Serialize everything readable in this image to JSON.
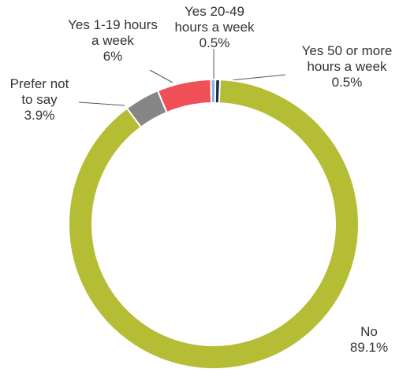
{
  "chart_data": {
    "type": "donut",
    "categories": [
      "No",
      "Prefer not to say",
      "Yes 1-19 hours a week",
      "Yes 20-49 hours a week",
      "Yes 50 or more hours a week"
    ],
    "values": [
      89.1,
      3.9,
      6,
      0.5,
      0.5
    ],
    "value_labels": [
      "89.1%",
      "3.9%",
      "6%",
      "0.5%",
      "0.5%"
    ],
    "colors": [
      "#b5bd35",
      "#868686",
      "#ef5058",
      "#8ab6de",
      "#1d2c4c"
    ]
  }
}
